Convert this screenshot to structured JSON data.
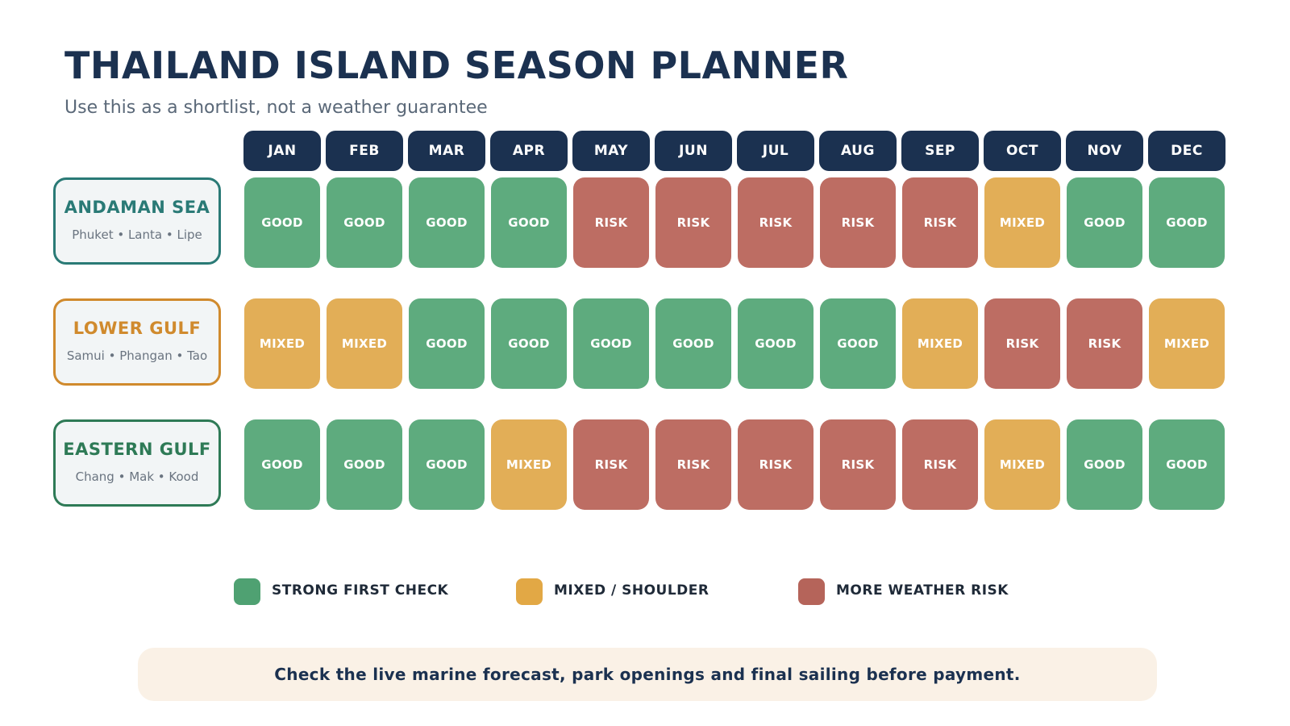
{
  "title": "THAILAND ISLAND SEASON PLANNER",
  "subtitle": "Use this as a shortlist, not a weather guarantee",
  "months": [
    "JAN",
    "FEB",
    "MAR",
    "APR",
    "MAY",
    "JUN",
    "JUL",
    "AUG",
    "SEP",
    "OCT",
    "NOV",
    "DEC"
  ],
  "status_colors": {
    "GOOD": "#5eab7e",
    "MIXED": "#e2ae57",
    "RISK": "#bd6d63"
  },
  "regions": [
    {
      "name": "ANDAMAN SEA",
      "islands": "Phuket • Lanta • Lipe",
      "color": "#2a7a76",
      "statuses": [
        "GOOD",
        "GOOD",
        "GOOD",
        "GOOD",
        "RISK",
        "RISK",
        "RISK",
        "RISK",
        "RISK",
        "MIXED",
        "GOOD",
        "GOOD"
      ]
    },
    {
      "name": "LOWER GULF",
      "islands": "Samui • Phangan • Tao",
      "color": "#d08a2d",
      "statuses": [
        "MIXED",
        "MIXED",
        "GOOD",
        "GOOD",
        "GOOD",
        "GOOD",
        "GOOD",
        "GOOD",
        "MIXED",
        "RISK",
        "RISK",
        "MIXED"
      ]
    },
    {
      "name": "EASTERN GULF",
      "islands": "Chang • Mak • Kood",
      "color": "#2e7a56",
      "statuses": [
        "GOOD",
        "GOOD",
        "GOOD",
        "MIXED",
        "RISK",
        "RISK",
        "RISK",
        "RISK",
        "RISK",
        "MIXED",
        "GOOD",
        "GOOD"
      ]
    }
  ],
  "legend": [
    {
      "label": "STRONG FIRST CHECK",
      "color": "#4fa172"
    },
    {
      "label": "MIXED / SHOULDER",
      "color": "#e2a845"
    },
    {
      "label": "MORE WEATHER RISK",
      "color": "#b5645a"
    }
  ],
  "footer_note": "Check the live marine forecast, park openings and final sailing before payment."
}
